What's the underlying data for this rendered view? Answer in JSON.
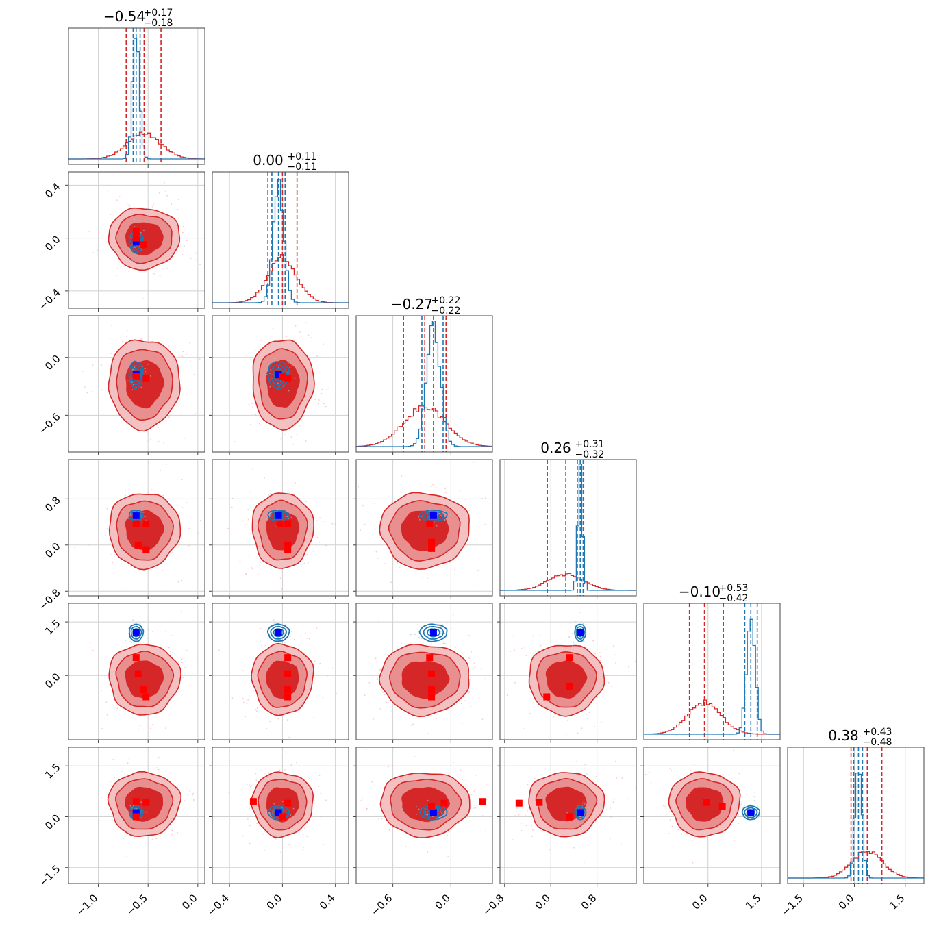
{
  "chart_data": {
    "type": "corner",
    "n_params": 6,
    "grid": true,
    "series": [
      {
        "color": "#1f77b4"
      },
      {
        "color": "#d62728"
      }
    ],
    "marker_colors": {
      "true_value": "#0000ff",
      "mode": "#ff0000"
    },
    "titles": [
      {
        "value": "−0.54",
        "plus": "+0.17",
        "minus": "−0.18"
      },
      {
        "value": "0.00",
        "plus": "+0.11",
        "minus": "−0.11"
      },
      {
        "value": "−0.27",
        "plus": "+0.22",
        "minus": "−0.22"
      },
      {
        "value": "0.26",
        "plus": "+0.31",
        "minus": "−0.32"
      },
      {
        "value": "−0.10",
        "plus": "+0.53",
        "minus": "−0.42"
      },
      {
        "value": "0.38",
        "plus": "+0.43",
        "minus": "−0.48"
      }
    ],
    "axes": [
      {
        "range": [
          -1.3,
          0.07
        ],
        "ticks": [
          -1.0,
          -0.5,
          0.0
        ],
        "tick_labels": [
          "−1.0",
          "−0.5",
          "0.0"
        ]
      },
      {
        "range": [
          -0.53,
          0.5
        ],
        "ticks": [
          -0.4,
          0.0,
          0.4
        ],
        "tick_labels": [
          "−0.4",
          "0.0",
          "0.4"
        ]
      },
      {
        "range": [
          -0.98,
          0.43
        ],
        "ticks": [
          -0.6,
          0.0
        ],
        "tick_labels": [
          "−0.6",
          "0.0"
        ]
      },
      {
        "range": [
          -0.88,
          1.48
        ],
        "ticks": [
          -0.8,
          0.0,
          0.8
        ],
        "tick_labels": [
          "−0.8",
          "0.0",
          "0.8"
        ]
      },
      {
        "range": [
          -1.8,
          2.02
        ],
        "ticks": [
          0.0,
          1.5
        ],
        "tick_labels": [
          "0.0",
          "1.5"
        ]
      },
      {
        "range": [
          -1.97,
          2.05
        ],
        "ticks": [
          -1.5,
          0.0,
          1.5
        ],
        "tick_labels": [
          "−1.5",
          "0.0",
          "1.5"
        ]
      }
    ],
    "row_axes": [
      null,
      {
        "ticks": [
          0.4,
          0.0,
          -0.4
        ],
        "tick_labels": [
          "0.4",
          "0.0",
          "−0.4"
        ]
      },
      {
        "ticks": [
          0.0,
          -0.6
        ],
        "tick_labels": [
          "0.0",
          "−0.6"
        ]
      },
      {
        "ticks": [
          0.8,
          0.0,
          -0.8
        ],
        "tick_labels": [
          "0.8",
          "0.0",
          "−0.8"
        ]
      },
      {
        "ticks": [
          1.5,
          0.0
        ],
        "tick_labels": [
          "1.5",
          "0.0"
        ]
      },
      {
        "ticks": [
          1.5,
          0.0,
          -1.5
        ],
        "tick_labels": [
          "1.5",
          "0.0",
          "−1.5"
        ]
      }
    ],
    "blue_posterior": [
      {
        "mean": -0.62,
        "sd": 0.035,
        "quantiles": [
          -0.65,
          -0.62,
          -0.58
        ]
      },
      {
        "mean": -0.03,
        "sd": 0.04,
        "quantiles": [
          -0.08,
          -0.03,
          0.02
        ]
      },
      {
        "mean": -0.18,
        "sd": 0.07,
        "quantiles": [
          -0.3,
          -0.18,
          -0.08
        ]
      },
      {
        "mean": 0.51,
        "sd": 0.04,
        "quantiles": [
          0.46,
          0.51,
          0.56
        ]
      },
      {
        "mean": 1.2,
        "sd": 0.12,
        "quantiles": [
          1.03,
          1.2,
          1.38
        ]
      },
      {
        "mean": 0.12,
        "sd": 0.1,
        "quantiles": [
          -0.02,
          0.12,
          0.24
        ]
      }
    ],
    "red_posterior": [
      {
        "mean": -0.54,
        "sd": 0.17,
        "quantiles": [
          -0.72,
          -0.54,
          -0.37
        ]
      },
      {
        "mean": 0.0,
        "sd": 0.11,
        "quantiles": [
          -0.11,
          0.0,
          0.11
        ]
      },
      {
        "mean": -0.27,
        "sd": 0.22,
        "quantiles": [
          -0.49,
          -0.27,
          -0.05
        ]
      },
      {
        "mean": 0.26,
        "sd": 0.31,
        "quantiles": [
          -0.06,
          0.26,
          0.57
        ]
      },
      {
        "mean": -0.1,
        "sd": 0.47,
        "quantiles": [
          -0.52,
          -0.1,
          0.43
        ]
      },
      {
        "mean": 0.38,
        "sd": 0.45,
        "quantiles": [
          -0.1,
          0.38,
          0.81
        ]
      }
    ],
    "true_values": [
      -0.62,
      -0.03,
      -0.18,
      0.51,
      1.2,
      0.12
    ],
    "mode_markers": [
      [
        [
          -0.62,
          0.05
        ],
        [
          -0.62,
          0.0
        ],
        [
          -0.55,
          -0.05
        ]
      ],
      [
        [
          -0.62,
          -0.2
        ],
        [
          -0.52,
          -0.22
        ],
        [
          0.0,
          -0.2
        ],
        [
          0.04,
          -0.22
        ]
      ],
      [
        [
          -0.62,
          0.37
        ],
        [
          -0.52,
          0.37
        ],
        [
          -0.6,
          0.0
        ],
        [
          -0.52,
          -0.08
        ],
        [
          -0.02,
          0.37
        ],
        [
          0.04,
          0.37
        ],
        [
          0.04,
          0.0
        ],
        [
          0.04,
          -0.08
        ],
        [
          -0.22,
          0.37
        ],
        [
          -0.2,
          0.05
        ],
        [
          -0.2,
          -0.06
        ]
      ],
      [
        [
          -0.62,
          0.5
        ],
        [
          -0.6,
          0.05
        ],
        [
          -0.55,
          -0.4
        ],
        [
          -0.52,
          -0.6
        ],
        [
          0.04,
          0.5
        ],
        [
          0.04,
          0.05
        ],
        [
          0.04,
          -0.4
        ],
        [
          0.04,
          -0.6
        ],
        [
          -0.22,
          0.5
        ],
        [
          -0.2,
          0.05
        ],
        [
          -0.2,
          -0.4
        ],
        [
          -0.2,
          -0.6
        ],
        [
          -0.07,
          -0.6
        ],
        [
          0.33,
          0.5
        ],
        [
          0.33,
          -0.3
        ]
      ],
      [
        [
          -0.62,
          0.45
        ],
        [
          -0.52,
          0.42
        ],
        [
          -0.62,
          0.0
        ],
        [
          0.04,
          0.4
        ],
        [
          0.0,
          0.0
        ],
        [
          -0.22,
          0.45
        ],
        [
          -0.2,
          0.3
        ],
        [
          -0.07,
          0.4
        ],
        [
          0.33,
          0.45
        ],
        [
          0.33,
          0.0
        ],
        [
          -0.55,
          0.4
        ],
        [
          -0.2,
          0.42
        ],
        [
          -0.05,
          0.42
        ],
        [
          0.4,
          0.3
        ]
      ]
    ]
  }
}
